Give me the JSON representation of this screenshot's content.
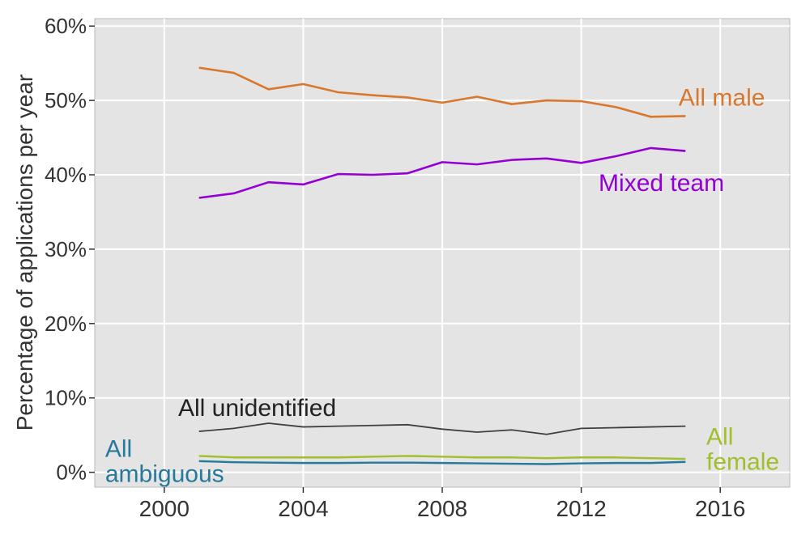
{
  "chart_data": {
    "type": "line",
    "title": "",
    "xlabel": "",
    "ylabel": "Percentage of applications per year",
    "xlim": [
      1998,
      2018
    ],
    "ylim": [
      -2,
      61
    ],
    "grid": true,
    "legend_position": "inline-annotations",
    "panel_bg": "#e4e4e4",
    "panel_border": "#b9b9b9",
    "gridline_color": "#ffffff",
    "x": [
      2001,
      2002,
      2003,
      2004,
      2005,
      2006,
      2007,
      2008,
      2009,
      2010,
      2011,
      2012,
      2013,
      2014,
      2015
    ],
    "series": [
      {
        "name": "All male",
        "color": "#d9782d",
        "width": 2.6,
        "values": [
          54.4,
          53.7,
          51.5,
          52.2,
          51.1,
          50.7,
          50.4,
          49.7,
          50.5,
          49.5,
          50.0,
          49.9,
          49.1,
          47.8,
          47.9
        ]
      },
      {
        "name": "Mixed team",
        "color": "#9400d3",
        "width": 2.6,
        "values": [
          36.9,
          37.5,
          39.0,
          38.7,
          40.1,
          40.0,
          40.2,
          41.7,
          41.4,
          42.0,
          42.2,
          41.6,
          42.5,
          43.6,
          43.2
        ]
      },
      {
        "name": "All unidentified",
        "color": "#3f3f3f",
        "width": 1.8,
        "values": [
          5.5,
          5.9,
          6.6,
          6.1,
          6.2,
          6.3,
          6.4,
          5.8,
          5.4,
          5.7,
          5.1,
          5.9,
          6.0,
          6.1,
          6.2
        ]
      },
      {
        "name": "All female",
        "color": "#a0bf2c",
        "width": 2.4,
        "values": [
          2.2,
          2.0,
          2.0,
          2.0,
          2.0,
          2.1,
          2.2,
          2.1,
          2.0,
          2.0,
          1.9,
          2.0,
          2.0,
          1.9,
          1.8
        ]
      },
      {
        "name": "All ambiguous",
        "color": "#27799c",
        "width": 2.4,
        "values": [
          1.5,
          1.35,
          1.3,
          1.25,
          1.25,
          1.3,
          1.3,
          1.25,
          1.2,
          1.15,
          1.1,
          1.2,
          1.25,
          1.25,
          1.4
        ]
      }
    ],
    "x_ticks": [
      {
        "value": 2000,
        "label": "2000"
      },
      {
        "value": 2004,
        "label": "2004"
      },
      {
        "value": 2008,
        "label": "2008"
      },
      {
        "value": 2012,
        "label": "2012"
      },
      {
        "value": 2016,
        "label": "2016"
      }
    ],
    "y_ticks": [
      {
        "value": 0,
        "label": "0%"
      },
      {
        "value": 10,
        "label": "10%"
      },
      {
        "value": 20,
        "label": "20%"
      },
      {
        "value": 30,
        "label": "30%"
      },
      {
        "value": 40,
        "label": "40%"
      },
      {
        "value": 50,
        "label": "50%"
      },
      {
        "value": 60,
        "label": "60%"
      }
    ],
    "annotations": [
      {
        "lines": [
          "All male"
        ],
        "color": "#d9782d",
        "year": 2014.8,
        "pct": 49.3,
        "anchor": "start"
      },
      {
        "lines": [
          "Mixed team"
        ],
        "color": "#9400d3",
        "year": 2012.5,
        "pct": 37.8,
        "anchor": "start"
      },
      {
        "lines": [
          "All unidentified"
        ],
        "color": "#222222",
        "year": 2000.4,
        "pct": 7.6,
        "anchor": "start"
      },
      {
        "lines": [
          "All",
          "ambiguous"
        ],
        "color": "#27799c",
        "year": 1998.3,
        "pct": 2.1,
        "anchor": "start"
      },
      {
        "lines": [
          "All",
          "female"
        ],
        "color": "#a0bf2c",
        "year": 2015.6,
        "pct": 3.7,
        "anchor": "start"
      }
    ]
  }
}
